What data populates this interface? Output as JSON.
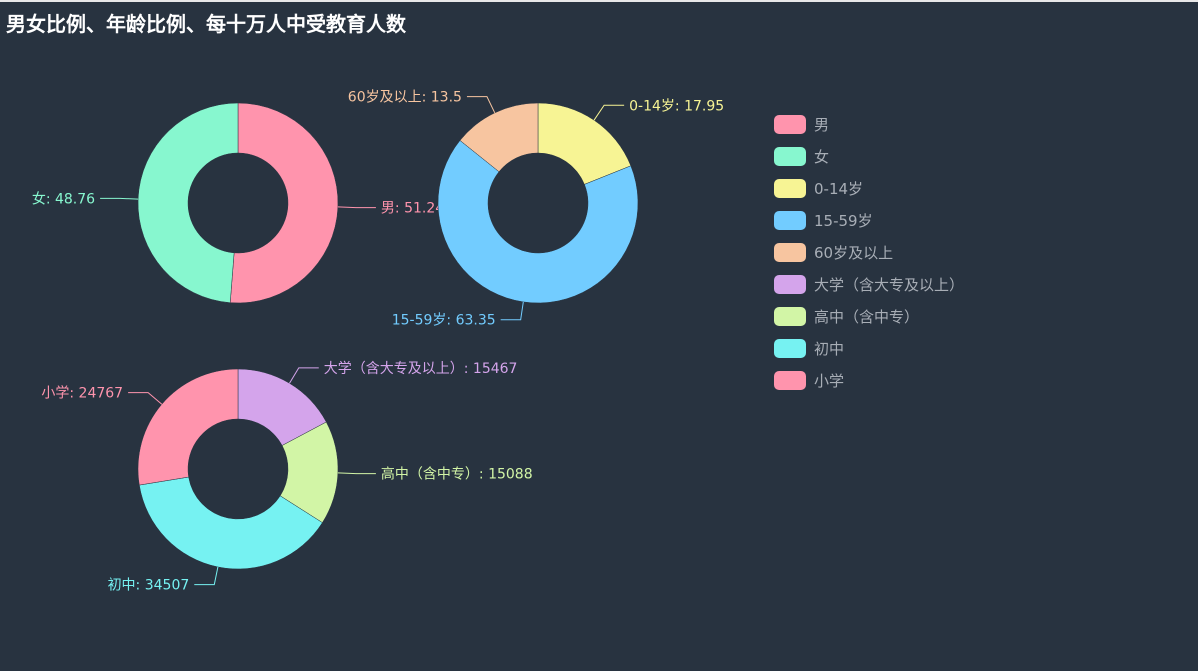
{
  "title": "男女比例、年龄比例、每十万人中受教育人数",
  "legend": [
    {
      "label": "男",
      "color": "#ff94ad"
    },
    {
      "label": "女",
      "color": "#87f7cf"
    },
    {
      "label": "0-14岁",
      "color": "#f7f494"
    },
    {
      "label": "15-59岁",
      "color": "#72ccff"
    },
    {
      "label": "60岁及以上",
      "color": "#f7c5a0"
    },
    {
      "label": "大学（含大专及以上）",
      "color": "#d4a4eb"
    },
    {
      "label": "高中（含中专）",
      "color": "#d2f5a6"
    },
    {
      "label": "初中",
      "color": "#76f2f2"
    },
    {
      "label": "小学",
      "color": "#ff94ad"
    }
  ],
  "chart_data": [
    {
      "type": "pie",
      "donut": true,
      "slices": [
        {
          "name": "男",
          "value": 51.24,
          "label": "男: 51.24",
          "color": "#ff94ad"
        },
        {
          "name": "女",
          "value": 48.76,
          "label": "女: 48.76",
          "color": "#87f7cf"
        }
      ]
    },
    {
      "type": "pie",
      "donut": true,
      "slices": [
        {
          "name": "0-14岁",
          "value": 17.95,
          "label": "0-14岁: 17.95",
          "color": "#f7f494"
        },
        {
          "name": "15-59岁",
          "value": 63.35,
          "label": "15-59岁: 63.35",
          "color": "#72ccff"
        },
        {
          "name": "60岁及以上",
          "value": 13.5,
          "label": "60岁及以上: 13.5",
          "color": "#f7c5a0"
        }
      ]
    },
    {
      "type": "pie",
      "donut": true,
      "slices": [
        {
          "name": "大学（含大专及以上）",
          "value": 15467,
          "label": "大学（含大专及以上）: 15467",
          "color": "#d4a4eb"
        },
        {
          "name": "高中（含中专）",
          "value": 15088,
          "label": "高中（含中专）: 15088",
          "color": "#d2f5a6"
        },
        {
          "name": "初中",
          "value": 34507,
          "label": "初中: 34507",
          "color": "#76f2f2"
        },
        {
          "name": "小学",
          "value": 24767,
          "label": "小学: 24767",
          "color": "#ff94ad"
        }
      ]
    }
  ]
}
